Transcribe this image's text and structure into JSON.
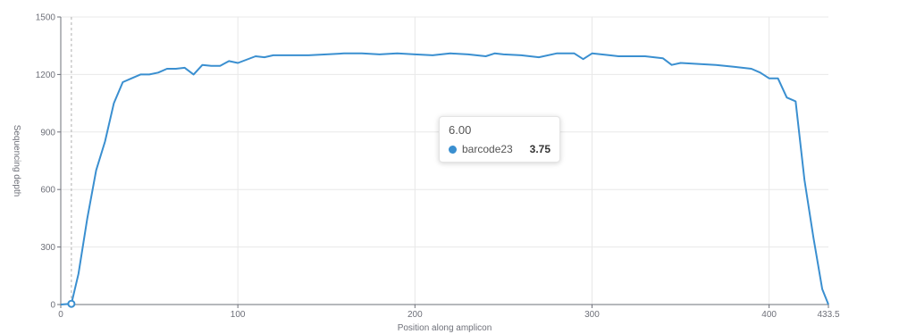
{
  "chart_data": {
    "type": "line",
    "xlabel": "Position along amplicon",
    "ylabel": "Sequencing depth",
    "xlim": [
      0,
      433.5
    ],
    "ylim": [
      0,
      1500
    ],
    "x_ticks": [
      "0",
      "100",
      "200",
      "300",
      "400",
      "433.5"
    ],
    "y_ticks": [
      "0",
      "300",
      "600",
      "900",
      "1200",
      "1500"
    ],
    "grid": true,
    "series": [
      {
        "name": "barcode23",
        "color": "#3a8fd0",
        "x": [
          0,
          6,
          10,
          15,
          20,
          25,
          30,
          35,
          40,
          45,
          50,
          55,
          60,
          65,
          70,
          75,
          80,
          85,
          90,
          95,
          100,
          110,
          115,
          120,
          130,
          140,
          150,
          160,
          170,
          180,
          190,
          200,
          210,
          220,
          230,
          240,
          245,
          250,
          260,
          270,
          280,
          290,
          295,
          300,
          310,
          315,
          320,
          330,
          340,
          345,
          350,
          360,
          370,
          380,
          390,
          395,
          400,
          405,
          410,
          415,
          420,
          425,
          430,
          433.5
        ],
        "values": [
          0,
          4,
          160,
          450,
          700,
          850,
          1050,
          1160,
          1180,
          1200,
          1200,
          1210,
          1230,
          1230,
          1235,
          1200,
          1250,
          1245,
          1245,
          1270,
          1260,
          1295,
          1290,
          1300,
          1300,
          1300,
          1305,
          1310,
          1310,
          1305,
          1310,
          1305,
          1300,
          1310,
          1305,
          1295,
          1310,
          1305,
          1300,
          1290,
          1310,
          1310,
          1280,
          1310,
          1300,
          1295,
          1295,
          1295,
          1285,
          1250,
          1260,
          1255,
          1250,
          1240,
          1230,
          1210,
          1180,
          1180,
          1080,
          1060,
          650,
          350,
          80,
          0
        ]
      }
    ],
    "tooltip": {
      "title": "6.00",
      "series_name": "barcode23",
      "value": "3.75",
      "point_x": 6,
      "point_y": 3.75
    }
  }
}
